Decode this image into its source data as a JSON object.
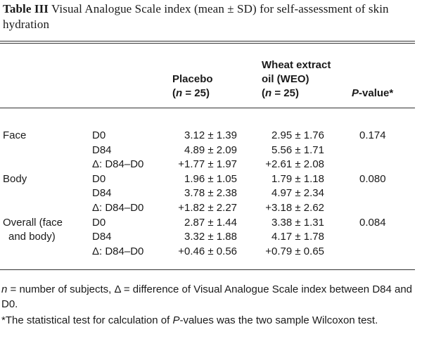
{
  "caption": {
    "label": "Table III",
    "text": "Visual Analogue Scale index (mean ± SD) for self-assessment of skin hydration"
  },
  "columns": {
    "placebo": {
      "line1": "Placebo",
      "n_open": "(",
      "n_var": "n",
      "n_rest": " = 25)"
    },
    "weo": {
      "line1": "Wheat extract",
      "line2": "oil (WEO)",
      "n_open": "(",
      "n_var": "n",
      "n_rest": " = 25)"
    },
    "pvalue": {
      "var": "P",
      "rest": "-value*"
    }
  },
  "groups": [
    {
      "region": "Face",
      "p_value": "0.174",
      "rows": [
        {
          "time": "D0",
          "placebo": "3.12 ± 1.39",
          "weo": "2.95 ± 1.76"
        },
        {
          "time": "D84",
          "placebo": "4.89 ± 2.09",
          "weo": "5.56 ± 1.71"
        },
        {
          "time": "Δ: D84–D0",
          "placebo": "+1.77 ± 1.97",
          "weo": "+2.61 ± 2.08"
        }
      ]
    },
    {
      "region": "Body",
      "p_value": "0.080",
      "rows": [
        {
          "time": "D0",
          "placebo": "1.96 ± 1.05",
          "weo": "1.79 ± 1.18"
        },
        {
          "time": "D84",
          "placebo": "3.78 ± 2.38",
          "weo": "4.97 ± 2.34"
        },
        {
          "time": "Δ: D84–D0",
          "placebo": "+1.82 ± 2.27",
          "weo": "+3.18 ± 2.62"
        }
      ]
    },
    {
      "region": "Overall (face",
      "region_line2": "and body)",
      "p_value": "0.084",
      "rows": [
        {
          "time": "D0",
          "placebo": "2.87 ± 1.44",
          "weo": "3.38 ± 1.31"
        },
        {
          "time": "D84",
          "placebo": "3.32 ± 1.88",
          "weo": "4.17 ± 1.78"
        },
        {
          "time": "Δ: D84–D0",
          "placebo": "+0.46 ± 0.56",
          "weo": "+0.79 ± 0.65"
        }
      ]
    }
  ],
  "footnotes": {
    "n_var": "n",
    "n_text": " = number of subjects, Δ = difference of Visual Analogue Scale index between D84 and D0.",
    "star_text_a": "*The statistical test for calculation of ",
    "star_var": "P",
    "star_text_b": "-values was the two sample Wilcoxon test."
  }
}
